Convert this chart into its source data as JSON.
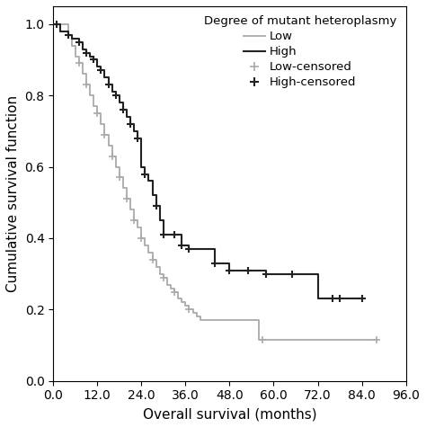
{
  "title": "Degree of mutant heteroplasmy",
  "xlabel": "Overall survival (months)",
  "ylabel": "Cumulative survival function",
  "xlim": [
    0,
    96
  ],
  "ylim": [
    0.0,
    1.05
  ],
  "xticks": [
    0.0,
    12.0,
    24.0,
    36.0,
    48.0,
    60.0,
    72.0,
    84.0,
    96.0
  ],
  "yticks": [
    0.0,
    0.2,
    0.4,
    0.6,
    0.8,
    1.0
  ],
  "low_color": "#aaaaaa",
  "high_color": "#222222",
  "low_x": [
    0,
    3,
    4,
    5,
    6,
    7,
    8,
    9,
    10,
    11,
    12,
    13,
    14,
    15,
    16,
    17,
    18,
    19,
    20,
    21,
    22,
    23,
    24,
    25,
    26,
    27,
    28,
    29,
    30,
    31,
    32,
    33,
    34,
    35,
    36,
    37,
    38,
    39,
    40,
    52,
    56,
    88
  ],
  "low_y": [
    1.0,
    1.0,
    0.97,
    0.94,
    0.91,
    0.89,
    0.86,
    0.83,
    0.8,
    0.77,
    0.75,
    0.72,
    0.69,
    0.66,
    0.63,
    0.6,
    0.57,
    0.54,
    0.51,
    0.48,
    0.45,
    0.43,
    0.4,
    0.38,
    0.36,
    0.34,
    0.32,
    0.3,
    0.29,
    0.27,
    0.26,
    0.25,
    0.23,
    0.22,
    0.21,
    0.2,
    0.19,
    0.18,
    0.17,
    0.17,
    0.115,
    0.115
  ],
  "low_censored_x": [
    7,
    9,
    12,
    14,
    16,
    18,
    20,
    22,
    24,
    27,
    30,
    33,
    37,
    57,
    88
  ],
  "low_censored_y": [
    0.89,
    0.83,
    0.75,
    0.69,
    0.63,
    0.57,
    0.51,
    0.45,
    0.4,
    0.34,
    0.29,
    0.25,
    0.2,
    0.115,
    0.115
  ],
  "high_x": [
    0,
    1,
    2,
    4,
    5,
    7,
    8,
    9,
    10,
    11,
    12,
    13,
    14,
    15,
    16,
    17,
    18,
    19,
    20,
    21,
    22,
    23,
    24,
    25,
    26,
    27,
    28,
    29,
    30,
    33,
    35,
    37,
    44,
    48,
    53,
    58,
    65,
    72,
    76,
    78,
    84
  ],
  "high_y": [
    1.0,
    1.0,
    0.98,
    0.97,
    0.96,
    0.95,
    0.93,
    0.92,
    0.91,
    0.9,
    0.88,
    0.87,
    0.85,
    0.83,
    0.81,
    0.8,
    0.78,
    0.76,
    0.74,
    0.72,
    0.7,
    0.68,
    0.6,
    0.58,
    0.56,
    0.52,
    0.49,
    0.45,
    0.41,
    0.41,
    0.38,
    0.37,
    0.33,
    0.31,
    0.31,
    0.3,
    0.3,
    0.23,
    0.23,
    0.23,
    0.23
  ],
  "high_censored_x": [
    1,
    4,
    7,
    9,
    11,
    13,
    15,
    17,
    19,
    21,
    23,
    25,
    28,
    30,
    33,
    35,
    37,
    44,
    48,
    53,
    58,
    65,
    76,
    78,
    84
  ],
  "high_censored_y": [
    1.0,
    0.97,
    0.95,
    0.92,
    0.9,
    0.87,
    0.83,
    0.8,
    0.76,
    0.72,
    0.68,
    0.58,
    0.49,
    0.41,
    0.41,
    0.38,
    0.37,
    0.33,
    0.31,
    0.31,
    0.3,
    0.3,
    0.23,
    0.23,
    0.23
  ],
  "background_color": "#ffffff",
  "legend_fontsize": 9.5,
  "axis_fontsize": 11,
  "tick_fontsize": 10,
  "figsize": [
    4.74,
    4.75
  ],
  "dpi": 100
}
